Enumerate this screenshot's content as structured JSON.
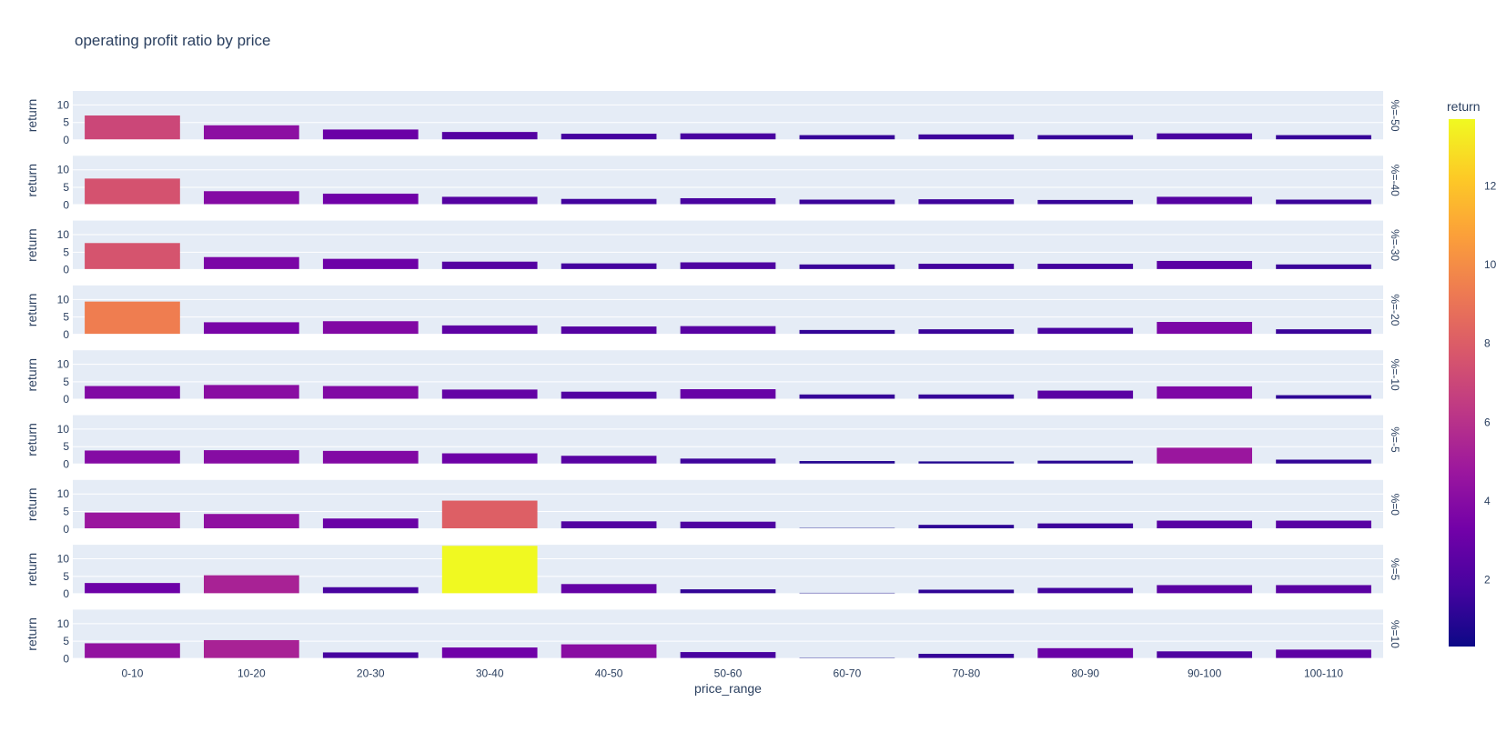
{
  "chart_data": {
    "type": "bar",
    "title": "operating profit ratio by price",
    "xlabel": "price_range",
    "ylabel": "return",
    "categories": [
      "0-10",
      "10-20",
      "20-30",
      "30-40",
      "40-50",
      "50-60",
      "60-70",
      "70-80",
      "80-90",
      "90-100",
      "100-110"
    ],
    "ylim": [
      0,
      14
    ],
    "yticks": [
      0,
      5,
      10
    ],
    "facet_prefix": "%=",
    "facets": [
      {
        "label": "%=-50",
        "values": [
          7.0,
          4.2,
          3.0,
          2.3,
          1.8,
          1.9,
          1.4,
          1.6,
          1.4,
          1.9,
          1.4
        ]
      },
      {
        "label": "%=-40",
        "values": [
          7.5,
          3.9,
          3.2,
          2.3,
          1.7,
          1.9,
          1.5,
          1.6,
          1.4,
          2.3,
          1.5
        ]
      },
      {
        "label": "%=-30",
        "values": [
          7.6,
          3.6,
          3.1,
          2.3,
          1.8,
          2.1,
          1.5,
          1.7,
          1.7,
          2.5,
          1.5
        ]
      },
      {
        "label": "%=-20",
        "values": [
          9.4,
          3.5,
          3.8,
          2.6,
          2.3,
          2.4,
          1.3,
          1.5,
          1.9,
          3.6,
          1.5
        ]
      },
      {
        "label": "%=-10",
        "values": [
          3.8,
          4.1,
          3.8,
          2.8,
          2.2,
          2.9,
          1.4,
          1.4,
          2.5,
          3.7,
          1.2
        ]
      },
      {
        "label": "%=-5",
        "values": [
          3.9,
          4.0,
          3.8,
          3.1,
          2.4,
          1.6,
          0.9,
          0.8,
          1.0,
          4.7,
          1.3
        ]
      },
      {
        "label": "%=0",
        "values": [
          4.7,
          4.3,
          3.0,
          8.1,
          2.2,
          2.1,
          0.3,
          1.2,
          1.6,
          2.4,
          2.4
        ]
      },
      {
        "label": "%=5",
        "values": [
          3.1,
          5.3,
          1.9,
          13.7,
          2.8,
          1.3,
          0.3,
          1.2,
          1.7,
          2.5,
          2.5
        ]
      },
      {
        "label": "%=10",
        "values": [
          4.4,
          5.3,
          1.8,
          3.2,
          4.1,
          1.9,
          0.3,
          1.4,
          3.0,
          2.1,
          2.6
        ]
      }
    ],
    "colorbar": {
      "title": "return",
      "range": [
        0.3,
        13.7
      ],
      "ticks": [
        2,
        4,
        6,
        8,
        10,
        12
      ],
      "colorscale": [
        "#0d0887",
        "#46039f",
        "#7201a8",
        "#9c179e",
        "#bd3786",
        "#d8576b",
        "#ed7953",
        "#fb9f3a",
        "#fdca26",
        "#f0f921"
      ]
    },
    "colors": {
      "plot_bg": "#e5ecf6",
      "grid": "#ffffff",
      "text": "#2a3f5f"
    },
    "grid": true
  }
}
